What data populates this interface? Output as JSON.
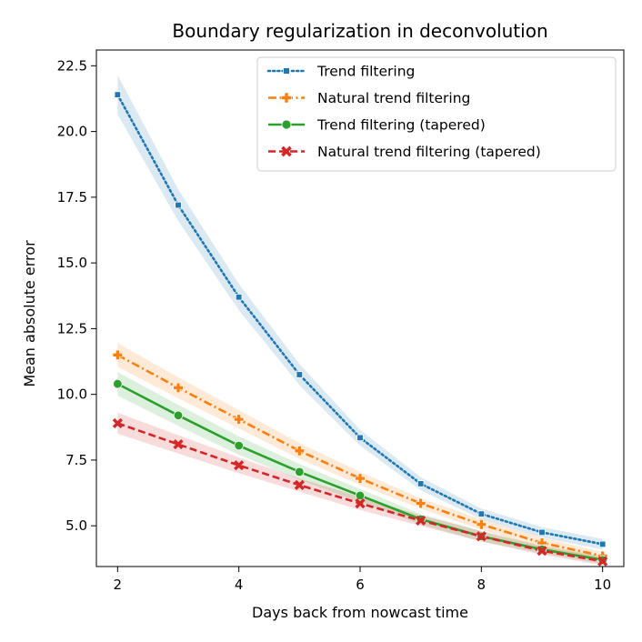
{
  "chart_data": {
    "type": "line",
    "title": "Boundary regularization in deconvolution",
    "xlabel": "Days back from nowcast time",
    "ylabel": "Mean absolute error",
    "x": [
      2,
      3,
      4,
      5,
      6,
      7,
      8,
      9,
      10
    ],
    "xlim": [
      1.65,
      10.35
    ],
    "ylim": [
      3.45,
      23.1
    ],
    "xticks": [
      2,
      4,
      6,
      8,
      10
    ],
    "yticks": [
      5.0,
      7.5,
      10.0,
      12.5,
      15.0,
      17.5,
      20.0,
      22.5
    ],
    "ytick_labels": [
      "5.0",
      "7.5",
      "10.0",
      "12.5",
      "15.0",
      "17.5",
      "20.0",
      "22.5"
    ],
    "grid": false,
    "legend_position": "top-right",
    "series": [
      {
        "name": "Trend filtering",
        "color": "#1f77b4",
        "linestyle": "dotted",
        "marker": "square",
        "values": [
          21.4,
          17.2,
          13.7,
          10.75,
          8.35,
          6.6,
          5.45,
          4.75,
          4.3
        ],
        "band": [
          0.75,
          0.6,
          0.5,
          0.4,
          0.3,
          0.25,
          0.2,
          0.2,
          0.2
        ]
      },
      {
        "name": "Natural trend filtering",
        "color": "#ff7f0e",
        "linestyle": "dashdot",
        "marker": "plus",
        "values": [
          11.5,
          10.25,
          9.05,
          7.85,
          6.8,
          5.85,
          5.05,
          4.35,
          3.85
        ],
        "band": [
          0.45,
          0.4,
          0.35,
          0.3,
          0.25,
          0.2,
          0.2,
          0.2,
          0.15
        ]
      },
      {
        "name": "Trend filtering (tapered)",
        "color": "#2ca02c",
        "linestyle": "solid",
        "marker": "circle",
        "values": [
          10.4,
          9.2,
          8.05,
          7.05,
          6.15,
          5.25,
          4.6,
          4.1,
          3.7
        ],
        "band": [
          0.45,
          0.4,
          0.35,
          0.3,
          0.25,
          0.2,
          0.2,
          0.15,
          0.15
        ]
      },
      {
        "name": "Natural trend filtering (tapered)",
        "color": "#d62728",
        "linestyle": "dashed",
        "marker": "x",
        "values": [
          8.9,
          8.1,
          7.3,
          6.55,
          5.85,
          5.2,
          4.6,
          4.05,
          3.65
        ],
        "band": [
          0.4,
          0.35,
          0.3,
          0.25,
          0.25,
          0.2,
          0.2,
          0.15,
          0.15
        ]
      }
    ]
  }
}
